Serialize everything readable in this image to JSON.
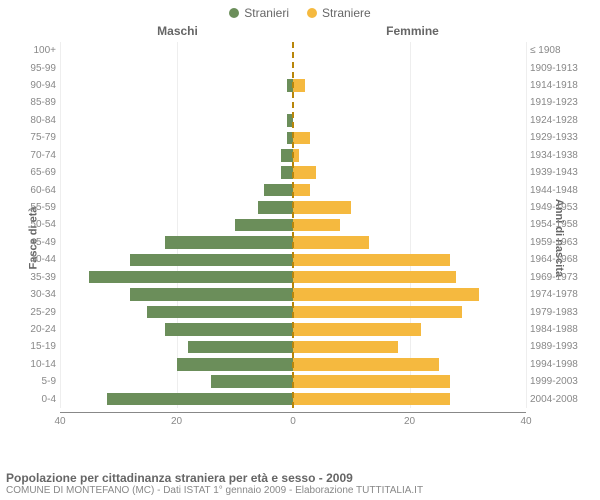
{
  "legend": {
    "male": {
      "label": "Stranieri",
      "color": "#6b8e5a"
    },
    "female": {
      "label": "Straniere",
      "color": "#f5b93f"
    }
  },
  "column_titles": {
    "male": "Maschi",
    "female": "Femmine"
  },
  "axis_labels": {
    "left": "Fasce di età",
    "right": "Anni di nascita"
  },
  "x_axis": {
    "max": 40,
    "ticks": [
      40,
      20,
      0,
      20,
      40
    ]
  },
  "colors": {
    "background": "#ffffff",
    "grid": "#eeeeee",
    "axis_text": "#888888",
    "center_dash": "#b8860b"
  },
  "rows": [
    {
      "age": "100+",
      "year": "≤ 1908",
      "m": 0,
      "f": 0
    },
    {
      "age": "95-99",
      "year": "1909-1913",
      "m": 0,
      "f": 0
    },
    {
      "age": "90-94",
      "year": "1914-1918",
      "m": 1,
      "f": 2
    },
    {
      "age": "85-89",
      "year": "1919-1923",
      "m": 0,
      "f": 0
    },
    {
      "age": "80-84",
      "year": "1924-1928",
      "m": 1,
      "f": 0
    },
    {
      "age": "75-79",
      "year": "1929-1933",
      "m": 1,
      "f": 3
    },
    {
      "age": "70-74",
      "year": "1934-1938",
      "m": 2,
      "f": 1
    },
    {
      "age": "65-69",
      "year": "1939-1943",
      "m": 2,
      "f": 4
    },
    {
      "age": "60-64",
      "year": "1944-1948",
      "m": 5,
      "f": 3
    },
    {
      "age": "55-59",
      "year": "1949-1953",
      "m": 6,
      "f": 10
    },
    {
      "age": "50-54",
      "year": "1954-1958",
      "m": 10,
      "f": 8
    },
    {
      "age": "45-49",
      "year": "1959-1963",
      "m": 22,
      "f": 13
    },
    {
      "age": "40-44",
      "year": "1964-1968",
      "m": 28,
      "f": 27
    },
    {
      "age": "35-39",
      "year": "1969-1973",
      "m": 35,
      "f": 28
    },
    {
      "age": "30-34",
      "year": "1974-1978",
      "m": 28,
      "f": 32
    },
    {
      "age": "25-29",
      "year": "1979-1983",
      "m": 25,
      "f": 29
    },
    {
      "age": "20-24",
      "year": "1984-1988",
      "m": 22,
      "f": 22
    },
    {
      "age": "15-19",
      "year": "1989-1993",
      "m": 18,
      "f": 18
    },
    {
      "age": "10-14",
      "year": "1994-1998",
      "m": 20,
      "f": 25
    },
    {
      "age": "5-9",
      "year": "1999-2003",
      "m": 14,
      "f": 27
    },
    {
      "age": "0-4",
      "year": "2004-2008",
      "m": 32,
      "f": 27
    }
  ],
  "footer": {
    "title": "Popolazione per cittadinanza straniera per età e sesso - 2009",
    "subtitle": "COMUNE DI MONTEFANO (MC) - Dati ISTAT 1° gennaio 2009 - Elaborazione TUTTITALIA.IT"
  }
}
